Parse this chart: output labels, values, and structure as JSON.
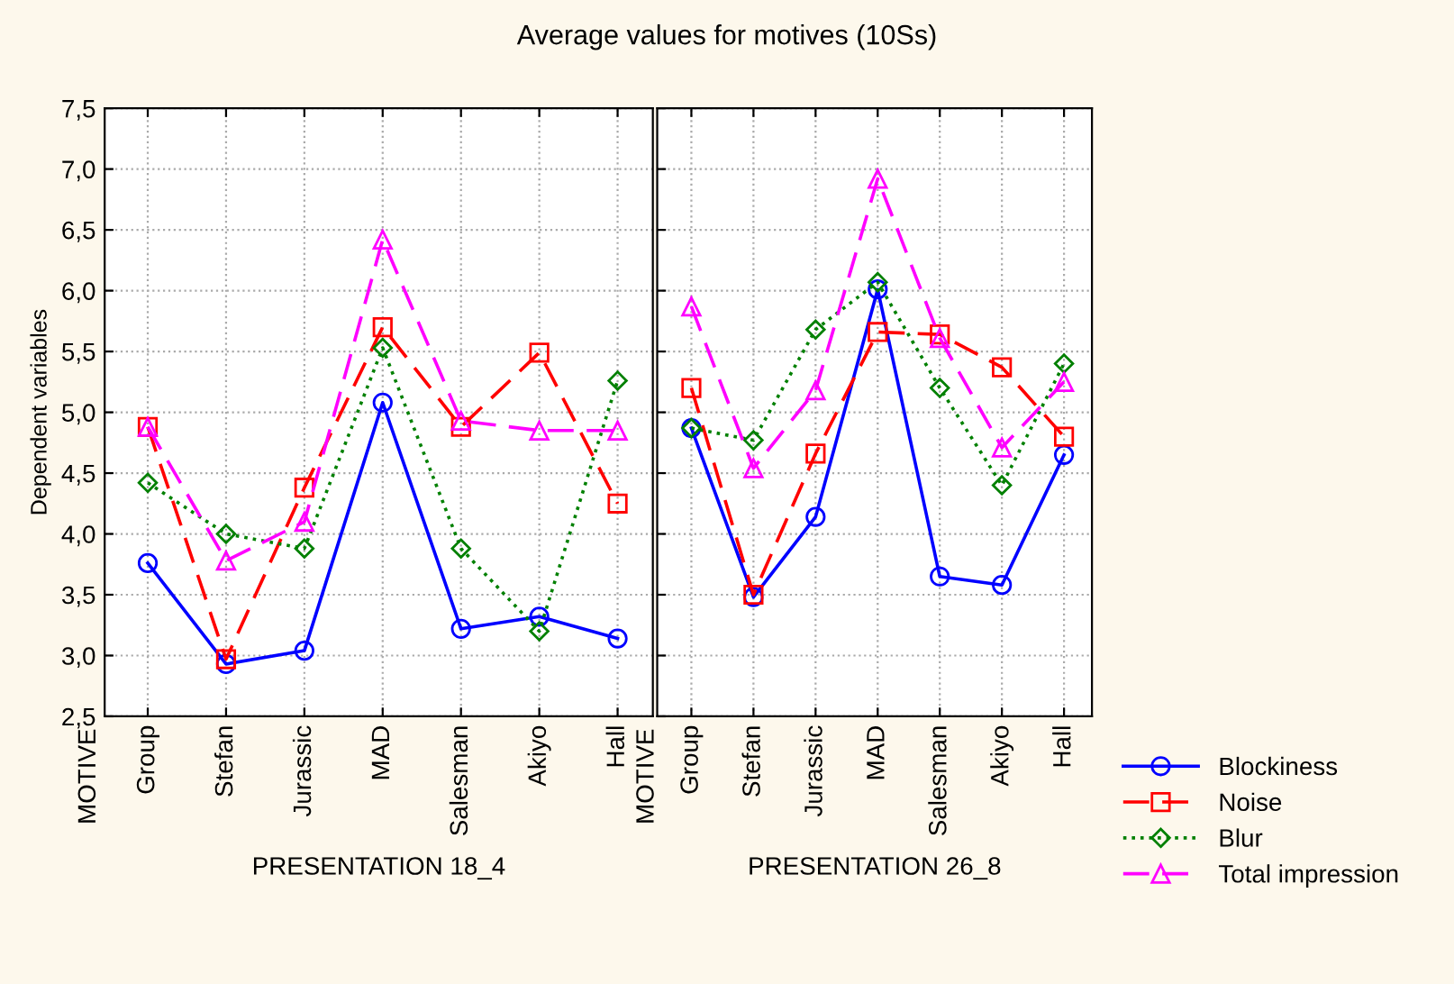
{
  "chart_data": [
    {
      "type": "line",
      "title": "Average values for motives (10Ss)",
      "xlabel": "PRESENTATION 18_4",
      "ylabel": "Dependent variables",
      "annotations": [
        "MOTIVE"
      ],
      "categories": [
        "Group",
        "Stefan",
        "Jurassic",
        "MAD",
        "Salesman",
        "Akiyo",
        "Hall"
      ],
      "series": [
        {
          "name": "Blockiness",
          "color": "#0000ff",
          "marker": "circle",
          "line_style": "solid",
          "values": [
            3.76,
            2.93,
            3.04,
            5.08,
            3.22,
            3.32,
            3.14
          ]
        },
        {
          "name": "Noise",
          "color": "#ff0000",
          "marker": "square",
          "line_style": "dashed",
          "values": [
            4.88,
            2.97,
            4.38,
            5.7,
            4.88,
            5.49,
            4.25
          ]
        },
        {
          "name": "Blur",
          "color": "#008000",
          "marker": "diamond",
          "line_style": "dotted",
          "values": [
            4.42,
            4.0,
            3.88,
            5.53,
            3.88,
            3.2,
            5.26
          ]
        },
        {
          "name": "Total impression",
          "color": "#ff00ff",
          "marker": "triangle",
          "line_style": "dashed",
          "values": [
            4.88,
            3.78,
            4.1,
            6.42,
            4.93,
            4.85,
            4.85
          ]
        }
      ],
      "ylim": [
        2.5,
        7.5
      ],
      "yticks": [
        {
          "value": 2.5,
          "label": "2,5"
        },
        {
          "value": 3.0,
          "label": "3,0"
        },
        {
          "value": 3.5,
          "label": "3,5"
        },
        {
          "value": 4.0,
          "label": "4,0"
        },
        {
          "value": 4.5,
          "label": "4,5"
        },
        {
          "value": 5.0,
          "label": "5,0"
        },
        {
          "value": 5.5,
          "label": "5,5"
        },
        {
          "value": 6.0,
          "label": "6,0"
        },
        {
          "value": 6.5,
          "label": "6,5"
        },
        {
          "value": 7.0,
          "label": "7,0"
        },
        {
          "value": 7.5,
          "label": "7,5"
        }
      ],
      "grid": true,
      "legend": "right"
    },
    {
      "type": "line",
      "xlabel": "PRESENTATION 26_8",
      "annotations": [
        "MOTIVE"
      ],
      "categories": [
        "Group",
        "Stefan",
        "Jurassic",
        "MAD",
        "Salesman",
        "Akiyo",
        "Hall"
      ],
      "series": [
        {
          "color": "#0000ff",
          "marker": "circle",
          "line_style": "solid",
          "values": [
            4.87,
            3.48,
            4.14,
            6.01,
            3.65,
            3.58,
            4.65
          ]
        },
        {
          "color": "#ff0000",
          "marker": "square",
          "line_style": "dashed",
          "values": [
            5.2,
            3.5,
            4.66,
            5.66,
            5.64,
            5.37,
            4.8
          ]
        },
        {
          "color": "#008000",
          "marker": "diamond",
          "line_style": "dotted",
          "values": [
            4.87,
            4.77,
            5.68,
            6.07,
            5.2,
            4.4,
            5.4
          ]
        },
        {
          "color": "#ff00ff",
          "marker": "triangle",
          "line_style": "dashed",
          "values": [
            5.87,
            4.54,
            5.18,
            6.92,
            5.61,
            4.71,
            5.25
          ]
        }
      ],
      "ylim": [
        2.5,
        7.5
      ],
      "yticks": [
        {
          "value": 2.5,
          "label": null
        },
        {
          "value": 3.0,
          "label": null
        },
        {
          "value": 3.5,
          "label": null
        },
        {
          "value": 4.0,
          "label": null
        },
        {
          "value": 4.5,
          "label": null
        },
        {
          "value": 5.0,
          "label": null
        },
        {
          "value": 5.5,
          "label": null
        },
        {
          "value": 6.0,
          "label": null
        },
        {
          "value": 6.5,
          "label": null
        },
        {
          "value": 7.0,
          "label": null
        },
        {
          "value": 7.5,
          "label": null
        }
      ],
      "tick_labels": "x",
      "grid": true
    }
  ]
}
